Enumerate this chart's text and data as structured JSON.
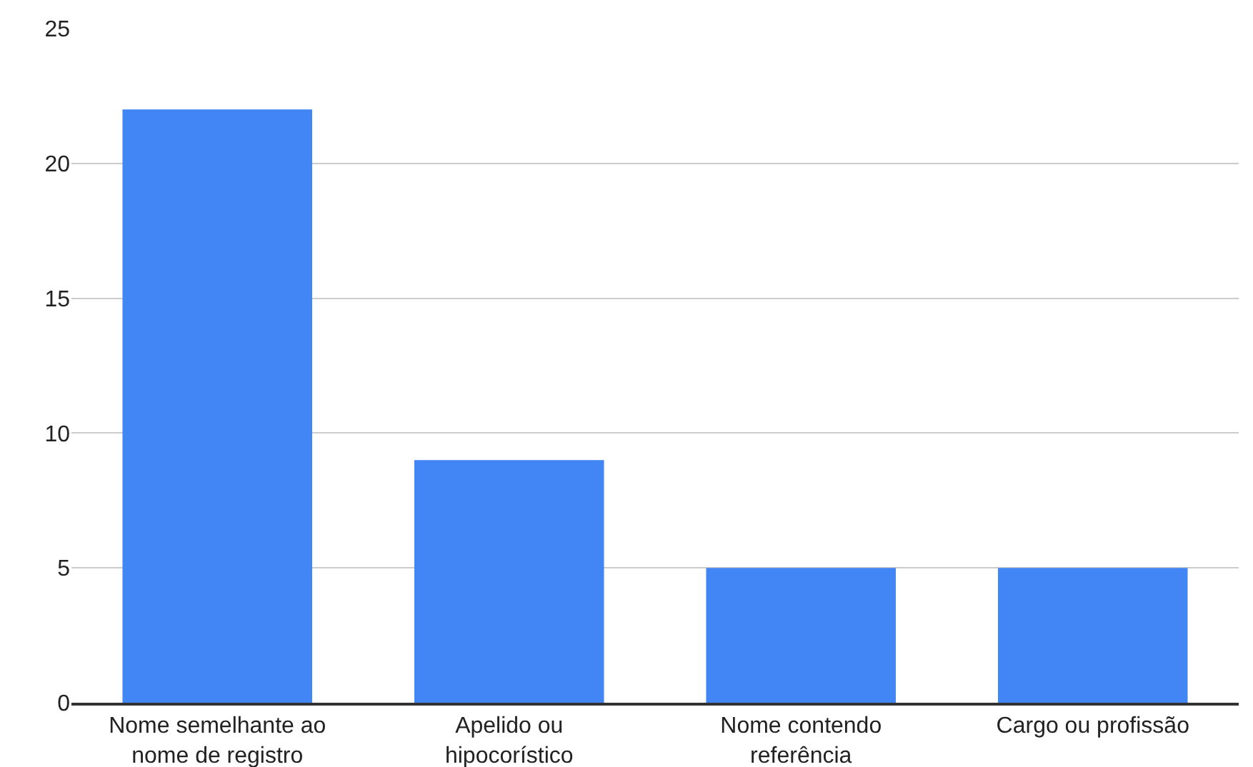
{
  "chart_data": {
    "type": "bar",
    "categories": [
      "Nome semelhante ao nome de registro",
      "Apelido ou hipocorístico",
      "Nome contendo referência",
      "Cargo ou profissão"
    ],
    "values": [
      22,
      9,
      5,
      5
    ],
    "color": "#4285f4",
    "ylim": [
      0,
      25
    ],
    "yticks": [
      0,
      5,
      10,
      15,
      20,
      25
    ],
    "grid": "y"
  }
}
